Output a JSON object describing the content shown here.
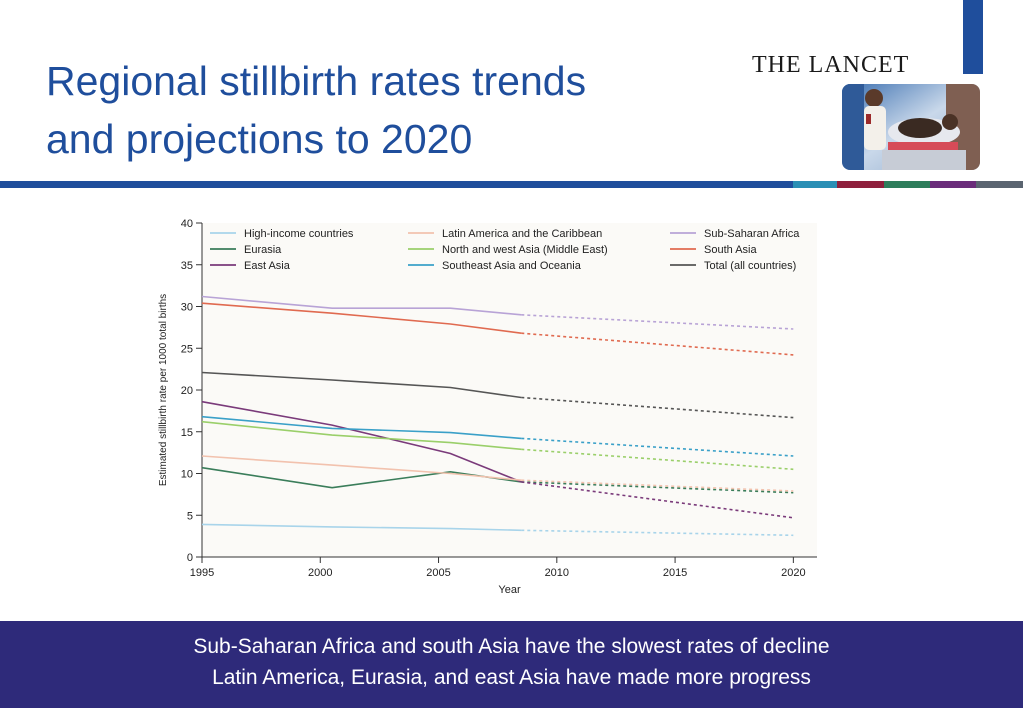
{
  "slide": {
    "title_line1": "Regional stillbirth rates trends",
    "title_line2": "and projections to 2020",
    "brand": "THE LANCET",
    "caption_line1": "Sub-Saharan Africa and south Asia have the slowest rates of decline",
    "caption_line2": "Latin America, Eurasia, and east Asia have made more progress"
  },
  "colors": {
    "title": "#1f4e9c",
    "rule": "#1f4e9c",
    "caption_bg": "#2e2a7a",
    "rule_accents": [
      "#2a8fb5",
      "#8e1f3c",
      "#2e7d5b",
      "#6a2c7a",
      "#5a6470"
    ]
  },
  "chart_data": {
    "type": "line",
    "xlabel": "Year",
    "ylabel": "Estimated stillbirth rate per 1000 total births",
    "xlim": [
      1995,
      2021
    ],
    "ylim": [
      0,
      40
    ],
    "xticks": [
      1995,
      2000,
      2005,
      2010,
      2015,
      2020
    ],
    "yticks": [
      0,
      5,
      10,
      15,
      20,
      25,
      30,
      35,
      40
    ],
    "grid": false,
    "legend_position": "top",
    "observed_x": [
      1995,
      2000.5,
      2005.5,
      2008.5
    ],
    "projection_x": [
      2008.5,
      2020
    ],
    "series": [
      {
        "name": "High-income countries",
        "color": "#a8d4ea",
        "observed": [
          3.9,
          3.6,
          3.4,
          3.2
        ],
        "projection": [
          3.2,
          2.6
        ]
      },
      {
        "name": "Eurasia",
        "color": "#3a7d5a",
        "observed": [
          10.7,
          8.3,
          10.2,
          9.0
        ],
        "projection": [
          9.0,
          7.7
        ]
      },
      {
        "name": "East Asia",
        "color": "#7a3a7a",
        "observed": [
          18.6,
          15.8,
          12.4,
          9.0
        ],
        "projection": [
          9.0,
          4.7
        ]
      },
      {
        "name": "Latin America and the Caribbean",
        "color": "#f2c2ae",
        "observed": [
          12.1,
          11.0,
          10.0,
          9.2
        ],
        "projection": [
          9.2,
          7.9
        ]
      },
      {
        "name": "North and west Asia (Middle East)",
        "color": "#9acf6a",
        "observed": [
          16.2,
          14.6,
          13.7,
          12.9
        ],
        "projection": [
          12.9,
          10.5
        ]
      },
      {
        "name": "Southeast Asia and Oceania",
        "color": "#3aa0c8",
        "observed": [
          16.8,
          15.4,
          14.9,
          14.2
        ],
        "projection": [
          14.2,
          12.1
        ]
      },
      {
        "name": "Sub-Saharan Africa",
        "color": "#b8a3d6",
        "observed": [
          31.2,
          29.8,
          29.8,
          29.0
        ],
        "projection": [
          29.0,
          27.3
        ]
      },
      {
        "name": "South Asia",
        "color": "#e06a50",
        "observed": [
          30.4,
          29.2,
          27.9,
          26.8
        ],
        "projection": [
          26.8,
          24.2
        ]
      },
      {
        "name": "Total (all countries)",
        "color": "#555555",
        "observed": [
          22.1,
          21.2,
          20.3,
          19.1
        ],
        "projection": [
          19.1,
          16.7
        ]
      }
    ]
  }
}
